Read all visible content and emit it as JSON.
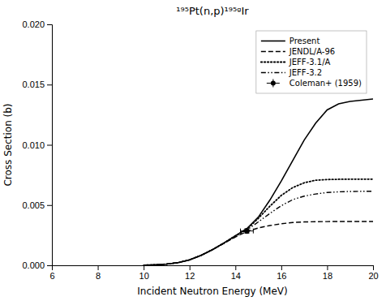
{
  "chart_data": {
    "type": "line",
    "title": "¹⁹⁵Pt(n,p)¹⁹⁵ᵍIr",
    "x_label": "Incident Neutron Energy (MeV)",
    "y_label": "Cross Section (b)",
    "xlim": [
      6,
      20
    ],
    "ylim": [
      0,
      0.02
    ],
    "xticks": [
      6,
      8,
      10,
      12,
      14,
      16,
      18,
      20
    ],
    "yticks": [
      {
        "value": 0.0,
        "label": "0.000"
      },
      {
        "value": 0.005,
        "label": "0.005"
      },
      {
        "value": 0.01,
        "label": "0.010"
      },
      {
        "value": 0.015,
        "label": "0.015"
      },
      {
        "value": 0.02,
        "label": "0.020"
      }
    ],
    "grid": false,
    "legend": "upper right",
    "series": [
      {
        "name": "Present",
        "type": "line",
        "color": "black",
        "line_style": "solid",
        "x": [
          10.0,
          10.5,
          11.0,
          11.5,
          12.0,
          12.5,
          13.0,
          13.5,
          14.0,
          14.5,
          15.0,
          15.5,
          16.0,
          16.5,
          17.0,
          17.5,
          18.0,
          18.5,
          19.0,
          19.5,
          20.0
        ],
        "values": [
          1e-05,
          4e-05,
          0.0001,
          0.00022,
          0.00045,
          0.00082,
          0.0013,
          0.00185,
          0.00245,
          0.00305,
          0.004,
          0.0054,
          0.007,
          0.0087,
          0.0104,
          0.0118,
          0.0129,
          0.0134,
          0.0136,
          0.0137,
          0.0138
        ]
      },
      {
        "name": "JENDL/A-96",
        "type": "line",
        "color": "black",
        "line_style": "dashed",
        "x": [
          10.0,
          10.5,
          11.0,
          11.5,
          12.0,
          12.5,
          13.0,
          13.5,
          14.0,
          14.5,
          15.0,
          15.5,
          16.0,
          16.5,
          17.0,
          17.5,
          18.0,
          18.5,
          19.0,
          19.5,
          20.0
        ],
        "values": [
          1e-05,
          4e-05,
          0.0001,
          0.00022,
          0.00045,
          0.00082,
          0.0013,
          0.00182,
          0.00235,
          0.0028,
          0.0031,
          0.0033,
          0.00345,
          0.00355,
          0.0036,
          0.00362,
          0.00363,
          0.00364,
          0.00364,
          0.00364,
          0.00364
        ]
      },
      {
        "name": "JEFF-3.1/A",
        "type": "line",
        "color": "black",
        "line_style": "dotted",
        "x": [
          10.0,
          10.5,
          11.0,
          11.5,
          12.0,
          12.5,
          13.0,
          13.5,
          14.0,
          14.5,
          15.0,
          15.5,
          16.0,
          16.5,
          17.0,
          17.5,
          18.0,
          18.5,
          19.0,
          19.5,
          20.0
        ],
        "values": [
          1e-05,
          4e-05,
          0.0001,
          0.00022,
          0.00045,
          0.00082,
          0.0013,
          0.00185,
          0.00245,
          0.003,
          0.0039,
          0.0049,
          0.0058,
          0.00645,
          0.00685,
          0.00706,
          0.00712,
          0.00714,
          0.00715,
          0.00715,
          0.00715
        ]
      },
      {
        "name": "JEFF-3.2",
        "type": "line",
        "color": "black",
        "line_style": "dashdotdot",
        "x": [
          10.0,
          10.5,
          11.0,
          11.5,
          12.0,
          12.5,
          13.0,
          13.5,
          14.0,
          14.5,
          15.0,
          15.5,
          16.0,
          16.5,
          17.0,
          17.5,
          18.0,
          18.5,
          19.0,
          19.5,
          20.0
        ],
        "values": [
          1e-05,
          4e-05,
          0.0001,
          0.00022,
          0.00045,
          0.00082,
          0.0013,
          0.00183,
          0.0024,
          0.00293,
          0.0036,
          0.0043,
          0.00495,
          0.00545,
          0.00574,
          0.00592,
          0.00604,
          0.0061,
          0.00613,
          0.00614,
          0.00615
        ]
      },
      {
        "name": "Coleman+ (1959)",
        "type": "scatter",
        "color": "black",
        "marker": "circle",
        "x": [
          14.5
        ],
        "values": [
          0.00285
        ],
        "x_errors": [
          0.28
        ],
        "y_errors": [
          0.00018
        ]
      }
    ]
  }
}
